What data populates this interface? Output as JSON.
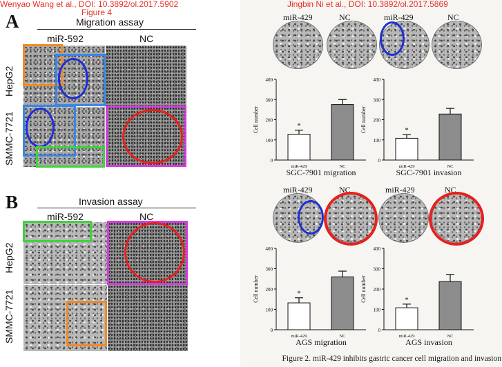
{
  "captions": {
    "left": "Wenyao Wang et al., DOI: 10.3892/ol.2017.5902",
    "left_sub": "Figure 4",
    "right": "Jingbin Ni et al., DOI: 10.3892/ol.2017.5869"
  },
  "left_figure": {
    "panel_a": {
      "letter": "A",
      "title": "Migration assay",
      "col1": "miR-592",
      "col2": "NC",
      "row1": "HepG2",
      "row2": "SMMC-7721"
    },
    "panel_b": {
      "letter": "B",
      "title": "Invasion assay",
      "col1": "miR-592",
      "col2": "NC",
      "row1": "HepG2",
      "row2": "SMMC-7721"
    }
  },
  "right_figure": {
    "top_labels": [
      "miR-429",
      "NC",
      "miR-429",
      "NC"
    ],
    "mid_labels": [
      "miR-429",
      "NC",
      "miR-429",
      "NC"
    ],
    "caption": "Figure 2. miR-429 inhibits gastric cancer cell migration and invasion"
  },
  "annotation_colors": {
    "orange": "#f08a24",
    "blue_rect": "#3a86e8",
    "blue_circle": "#1f2fd6",
    "red": "#e8201c",
    "magenta": "#d63be0",
    "green": "#3ed43a"
  },
  "chart_data": [
    {
      "type": "bar",
      "title": "SGC-7901 migration",
      "ylabel": "Cell number",
      "categories": [
        "miR-429",
        "NC"
      ],
      "values": [
        128,
        275
      ],
      "errors": [
        20,
        25
      ],
      "ylim": [
        0,
        400
      ],
      "yticks": [
        "0",
        "100",
        "200",
        "300",
        "400"
      ],
      "significance": "*",
      "colors": [
        "#ffffff",
        "#8c8c8c"
      ]
    },
    {
      "type": "bar",
      "title": "SGC-7901 invasion",
      "ylabel": "Cell number",
      "categories": [
        "miR-429",
        "NC"
      ],
      "values": [
        108,
        228
      ],
      "errors": [
        18,
        28
      ],
      "ylim": [
        0,
        400
      ],
      "yticks": [
        "0",
        "100",
        "200",
        "300",
        "400"
      ],
      "significance": "*",
      "colors": [
        "#ffffff",
        "#8c8c8c"
      ]
    },
    {
      "type": "bar",
      "title": "AGS migration",
      "ylabel": "Cell number",
      "categories": [
        "miR-429",
        "NC"
      ],
      "values": [
        132,
        260
      ],
      "errors": [
        25,
        28
      ],
      "ylim": [
        0,
        400
      ],
      "yticks": [
        "0",
        "100",
        "200",
        "300",
        "400"
      ],
      "significance": "*",
      "colors": [
        "#ffffff",
        "#8c8c8c"
      ]
    },
    {
      "type": "bar",
      "title": "AGS invasion",
      "ylabel": "Cell number",
      "categories": [
        "miR-429",
        "NC"
      ],
      "values": [
        108,
        237
      ],
      "errors": [
        18,
        35
      ],
      "ylim": [
        0,
        400
      ],
      "yticks": [
        "0",
        "100",
        "200",
        "300",
        "400"
      ],
      "significance": "*",
      "colors": [
        "#ffffff",
        "#8c8c8c"
      ]
    }
  ]
}
